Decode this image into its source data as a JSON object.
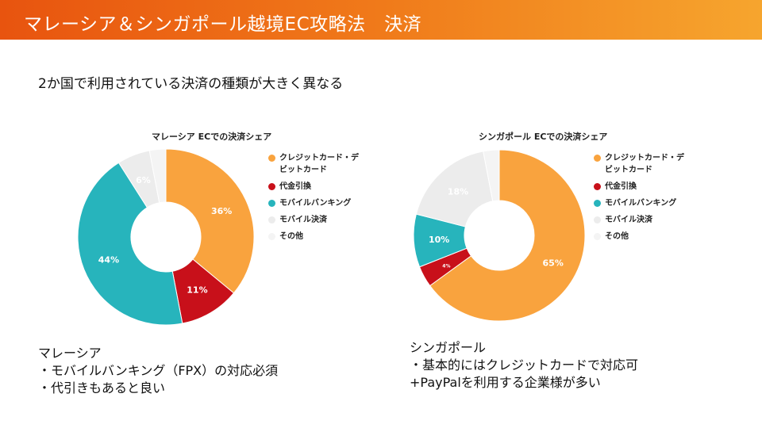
{
  "header": {
    "title": "マレーシア＆シンガポール越境EC攻略法　決済"
  },
  "subtitle": "2か国で利用されている決済の種類が大きく異なる",
  "legend_labels": [
    "クレジットカード・デビットカード",
    "代金引換",
    "モバイルバンキング",
    "モバイル決済",
    "その他"
  ],
  "chart_data": [
    {
      "type": "pie",
      "title": "マレーシア ECでの決済シェア",
      "categories": [
        "クレジットカード・デビットカード",
        "代金引換",
        "モバイルバンキング",
        "モバイル決済",
        "その他"
      ],
      "values": [
        36,
        11,
        44,
        6,
        3
      ],
      "data_labels": [
        "36%",
        "11%",
        "44%",
        "6%",
        ""
      ],
      "colors": [
        "#f9a33e",
        "#c8101a",
        "#27b4bc",
        "#ececec",
        "#f4f4f4"
      ],
      "label_colors": [
        "#ffffff",
        "#ffffff",
        "#ffffff",
        "#ffffff",
        "#ffffff"
      ],
      "legend_position": "right"
    },
    {
      "type": "pie",
      "title": "シンガポール ECでの決済シェア",
      "categories": [
        "クレジットカード・デビットカード",
        "代金引換",
        "モバイルバンキング",
        "モバイル決済",
        "その他"
      ],
      "values": [
        65,
        4,
        10,
        18,
        3
      ],
      "data_labels": [
        "65%",
        "4%",
        "10%",
        "18%",
        ""
      ],
      "colors": [
        "#f9a33e",
        "#c8101a",
        "#27b4bc",
        "#ececec",
        "#f4f4f4"
      ],
      "label_colors": [
        "#ffffff",
        "#ffffff",
        "#ffffff",
        "#ffffff",
        "#ffffff"
      ],
      "legend_position": "right"
    }
  ],
  "notes": {
    "malaysia": [
      "マレーシア",
      "・モバイルバンキング（FPX）の対応必須",
      "・代引きもあると良い"
    ],
    "singapore": [
      "シンガポール",
      "・基本的にはクレジットカードで対応可",
      "+PayPalを利用する企業様が多い"
    ]
  }
}
